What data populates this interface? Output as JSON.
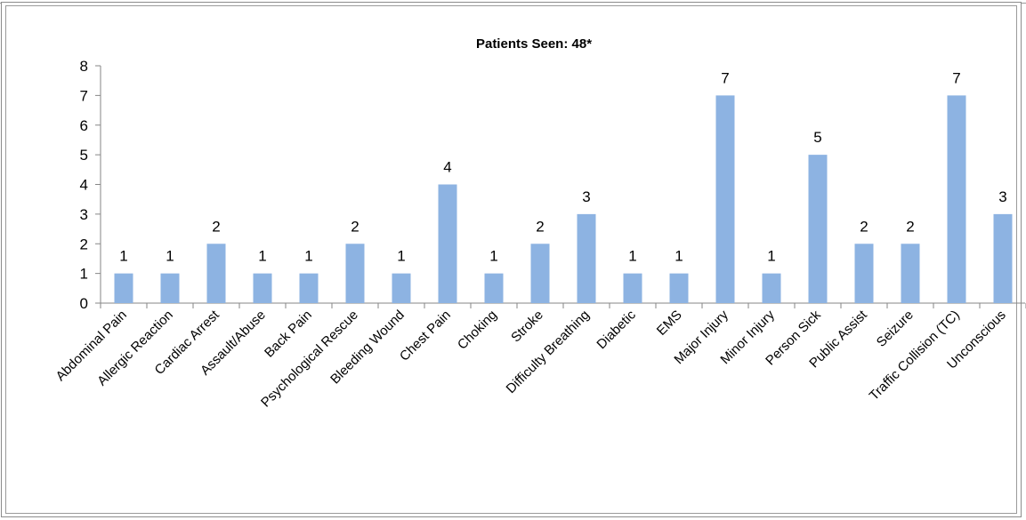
{
  "chart_data": {
    "type": "bar",
    "title": "Patients Seen: 48*",
    "xlabel": "",
    "ylabel": "",
    "ylim": [
      0,
      8
    ],
    "yticks": [
      0,
      1,
      2,
      3,
      4,
      5,
      6,
      7,
      8
    ],
    "grid": false,
    "legend": "none",
    "bar_color": "#8db3e2",
    "categories": [
      "Abdominal Pain",
      "Allergic Reaction",
      "Cardiac Arrest",
      "Assault/Abuse",
      "Back Pain",
      "Psychological Rescue",
      "Bleeding Wound",
      "Chest Pain",
      "Choking",
      "Stroke",
      "Difficulty Breathing",
      "Diabetic",
      "EMS",
      "Major Injury",
      "Minor Injury",
      "Person Sick",
      "Public Assist",
      "Seizure",
      "Traffic Collision (TC)",
      "Unconscious"
    ],
    "values": [
      1,
      1,
      2,
      1,
      1,
      2,
      1,
      4,
      1,
      2,
      3,
      1,
      1,
      7,
      1,
      5,
      2,
      2,
      7,
      3
    ]
  }
}
